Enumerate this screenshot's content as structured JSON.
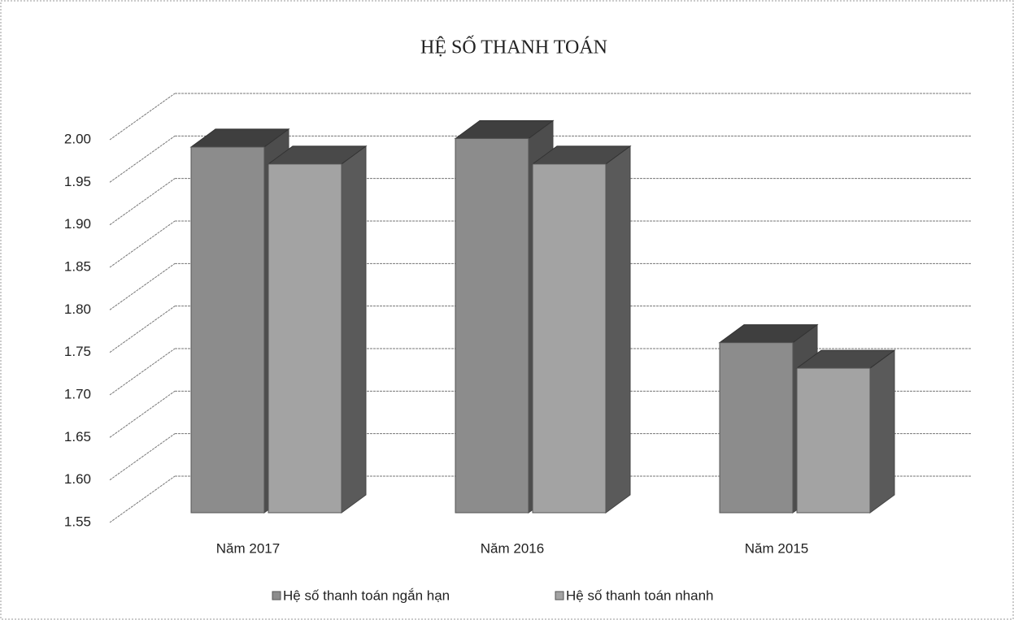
{
  "chart_data": {
    "type": "bar3d",
    "title": "HỆ SỐ THANH TOÁN",
    "categories": [
      "Năm 2017",
      "Năm 2016",
      "Năm 2015"
    ],
    "series": [
      {
        "name": "Hệ số thanh toán ngắn hạn",
        "color": "#8c8c8c",
        "values": [
          1.98,
          1.99,
          1.75
        ]
      },
      {
        "name": "Hệ số thanh toán nhanh",
        "color": "#a3a3a3",
        "values": [
          1.96,
          1.96,
          1.72
        ]
      }
    ],
    "ylim": [
      1.55,
      2.0
    ],
    "yticks": [
      1.55,
      {
        "value": 1.6,
        "label": "1.60"
      },
      1.65,
      {
        "value": 1.7,
        "label": "1.70"
      },
      1.75,
      {
        "value": 1.8,
        "label": "1.80"
      },
      1.85,
      {
        "value": 1.9,
        "label": "1.90"
      },
      1.95,
      {
        "value": 2.0,
        "label": "2.00"
      }
    ],
    "grid": true,
    "legend": "bottom"
  }
}
